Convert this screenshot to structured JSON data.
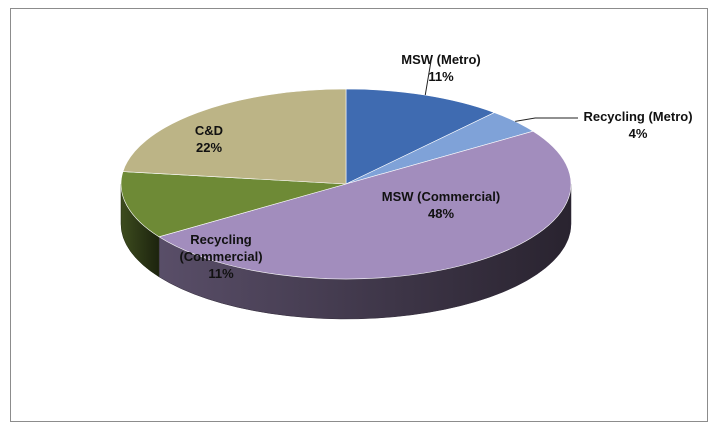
{
  "chart_data": {
    "type": "pie",
    "three_d": true,
    "start_angle_deg": 90,
    "direction": "clockwise",
    "slices": [
      {
        "label": "MSW (Metro)",
        "value": 11,
        "value_label": "11%",
        "color": "#3f6bb1"
      },
      {
        "label": "Recycling (Metro)",
        "value": 4,
        "value_label": "4%",
        "color": "#7fa2d8"
      },
      {
        "label": "MSW (Commercial)",
        "value": 48,
        "value_label": "48%",
        "color": "#a28dbd"
      },
      {
        "label": "Recycling (Commercial)",
        "value": 11,
        "value_label": "11%",
        "color": "#6e8a36"
      },
      {
        "label": "C&D",
        "value": 22,
        "value_label": "22%",
        "color": "#bcb486"
      }
    ],
    "legend": "none",
    "title": ""
  }
}
